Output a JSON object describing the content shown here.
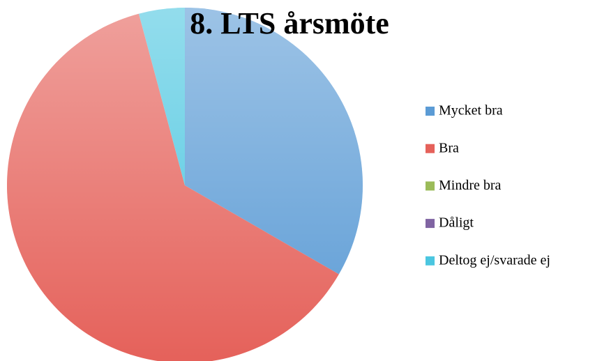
{
  "chart_data": {
    "type": "pie",
    "title": "8. LTS årsmöte",
    "categories": [
      "Mycket bra",
      "Bra",
      "Mindre bra",
      "Dåligt",
      "Deltog ej/svarade ej"
    ],
    "values": [
      8,
      15,
      0,
      0,
      1
    ],
    "colors": [
      "#5b9bd5",
      "#e5615a",
      "#9bbb59",
      "#8064a2",
      "#4bc6e0"
    ],
    "legend": "right"
  }
}
